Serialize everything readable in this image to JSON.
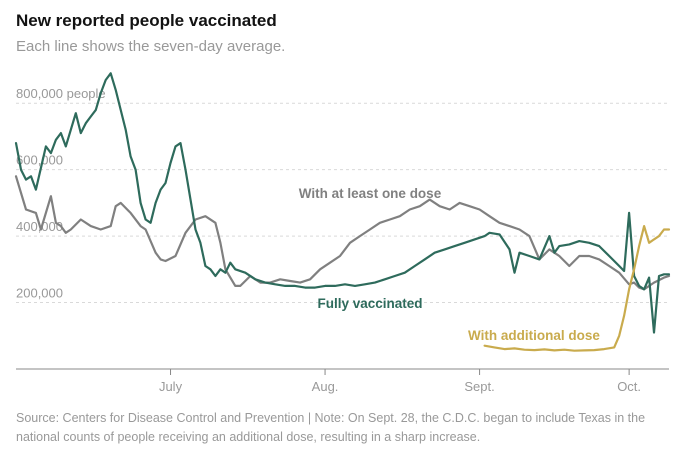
{
  "title": "New reported people vaccinated",
  "subtitle": "Each line shows the seven-day average.",
  "source": "Source: Centers for Disease Control and Prevention | Note: On Sept. 28, the C.D.C. began to include Texas in the national counts of people receiving an additional dose, resulting in a sharp increase.",
  "colors": {
    "at_least_one_dose": "#808080",
    "fully_vaccinated": "#2e6b5c",
    "additional_dose": "#c9ab4d",
    "gridline": "#d9d9d9",
    "axis_text": "#999999"
  },
  "chart_data": {
    "type": "line",
    "title": "New reported people vaccinated",
    "subtitle": "Each line shows the seven-day average.",
    "xlabel": "",
    "ylabel": "",
    "x_axis": {
      "start_day": 0,
      "end_day": 131,
      "note": "day 0 = June 4"
    },
    "xlim": [
      0,
      131
    ],
    "ylim": [
      0,
      900000
    ],
    "y_ticks": [
      {
        "value": 200000,
        "label": "200,000"
      },
      {
        "value": 400000,
        "label": "400,000"
      },
      {
        "value": 600000,
        "label": "600,000"
      },
      {
        "value": 800000,
        "label": "800,000 people"
      }
    ],
    "x_ticks": [
      {
        "day": 31,
        "label": "July"
      },
      {
        "day": 62,
        "label": "Aug."
      },
      {
        "day": 93,
        "label": "Sept."
      },
      {
        "day": 123,
        "label": "Oct."
      }
    ],
    "grid": true,
    "series": [
      {
        "name": "With at least one dose",
        "label_text": "With at least one dose",
        "color_key": "at_least_one_dose",
        "points": [
          [
            0,
            580000
          ],
          [
            2,
            480000
          ],
          [
            4,
            470000
          ],
          [
            5,
            420000
          ],
          [
            7,
            520000
          ],
          [
            8,
            440000
          ],
          [
            9,
            430000
          ],
          [
            10,
            410000
          ],
          [
            11,
            420000
          ],
          [
            13,
            450000
          ],
          [
            15,
            430000
          ],
          [
            17,
            420000
          ],
          [
            19,
            430000
          ],
          [
            20,
            490000
          ],
          [
            21,
            500000
          ],
          [
            23,
            470000
          ],
          [
            25,
            430000
          ],
          [
            26,
            420000
          ],
          [
            28,
            350000
          ],
          [
            29,
            330000
          ],
          [
            30,
            325000
          ],
          [
            32,
            340000
          ],
          [
            34,
            410000
          ],
          [
            36,
            450000
          ],
          [
            38,
            460000
          ],
          [
            40,
            440000
          ],
          [
            41,
            380000
          ],
          [
            42,
            300000
          ],
          [
            44,
            250000
          ],
          [
            45,
            250000
          ],
          [
            47,
            280000
          ],
          [
            49,
            260000
          ],
          [
            51,
            260000
          ],
          [
            53,
            270000
          ],
          [
            55,
            265000
          ],
          [
            57,
            260000
          ],
          [
            59,
            270000
          ],
          [
            61,
            300000
          ],
          [
            63,
            320000
          ],
          [
            65,
            340000
          ],
          [
            67,
            380000
          ],
          [
            69,
            400000
          ],
          [
            71,
            420000
          ],
          [
            73,
            440000
          ],
          [
            75,
            450000
          ],
          [
            77,
            460000
          ],
          [
            79,
            480000
          ],
          [
            81,
            490000
          ],
          [
            83,
            510000
          ],
          [
            85,
            490000
          ],
          [
            87,
            480000
          ],
          [
            89,
            500000
          ],
          [
            91,
            490000
          ],
          [
            93,
            480000
          ],
          [
            95,
            460000
          ],
          [
            97,
            440000
          ],
          [
            99,
            430000
          ],
          [
            101,
            420000
          ],
          [
            103,
            400000
          ],
          [
            105,
            330000
          ],
          [
            107,
            360000
          ],
          [
            109,
            340000
          ],
          [
            111,
            310000
          ],
          [
            113,
            340000
          ],
          [
            115,
            340000
          ],
          [
            117,
            330000
          ],
          [
            119,
            310000
          ],
          [
            121,
            290000
          ],
          [
            123,
            255000
          ],
          [
            124,
            260000
          ],
          [
            125,
            245000
          ],
          [
            126,
            240000
          ],
          [
            128,
            260000
          ],
          [
            130,
            275000
          ],
          [
            131,
            280000
          ]
        ]
      },
      {
        "name": "Fully vaccinated",
        "label_text": "Fully vaccinated",
        "color_key": "fully_vaccinated",
        "points": [
          [
            0,
            680000
          ],
          [
            1,
            600000
          ],
          [
            2,
            570000
          ],
          [
            3,
            580000
          ],
          [
            4,
            540000
          ],
          [
            6,
            670000
          ],
          [
            7,
            650000
          ],
          [
            8,
            690000
          ],
          [
            9,
            710000
          ],
          [
            10,
            670000
          ],
          [
            11,
            720000
          ],
          [
            12,
            770000
          ],
          [
            13,
            710000
          ],
          [
            14,
            740000
          ],
          [
            15,
            760000
          ],
          [
            16,
            780000
          ],
          [
            17,
            830000
          ],
          [
            18,
            870000
          ],
          [
            19,
            890000
          ],
          [
            20,
            840000
          ],
          [
            21,
            780000
          ],
          [
            22,
            720000
          ],
          [
            23,
            640000
          ],
          [
            24,
            600000
          ],
          [
            25,
            500000
          ],
          [
            26,
            450000
          ],
          [
            27,
            440000
          ],
          [
            28,
            500000
          ],
          [
            29,
            540000
          ],
          [
            30,
            560000
          ],
          [
            31,
            620000
          ],
          [
            32,
            670000
          ],
          [
            33,
            680000
          ],
          [
            34,
            600000
          ],
          [
            35,
            510000
          ],
          [
            36,
            420000
          ],
          [
            37,
            380000
          ],
          [
            38,
            310000
          ],
          [
            39,
            300000
          ],
          [
            40,
            280000
          ],
          [
            41,
            300000
          ],
          [
            42,
            290000
          ],
          [
            43,
            320000
          ],
          [
            44,
            300000
          ],
          [
            46,
            290000
          ],
          [
            48,
            270000
          ],
          [
            50,
            260000
          ],
          [
            52,
            255000
          ],
          [
            54,
            250000
          ],
          [
            56,
            250000
          ],
          [
            58,
            245000
          ],
          [
            60,
            245000
          ],
          [
            62,
            250000
          ],
          [
            64,
            250000
          ],
          [
            66,
            255000
          ],
          [
            68,
            250000
          ],
          [
            70,
            255000
          ],
          [
            72,
            260000
          ],
          [
            74,
            270000
          ],
          [
            76,
            280000
          ],
          [
            78,
            290000
          ],
          [
            80,
            310000
          ],
          [
            82,
            330000
          ],
          [
            84,
            350000
          ],
          [
            86,
            360000
          ],
          [
            88,
            370000
          ],
          [
            90,
            380000
          ],
          [
            92,
            390000
          ],
          [
            94,
            400000
          ],
          [
            95,
            410000
          ],
          [
            97,
            405000
          ],
          [
            99,
            360000
          ],
          [
            100,
            290000
          ],
          [
            101,
            350000
          ],
          [
            103,
            340000
          ],
          [
            105,
            330000
          ],
          [
            107,
            400000
          ],
          [
            108,
            350000
          ],
          [
            109,
            370000
          ],
          [
            111,
            375000
          ],
          [
            113,
            385000
          ],
          [
            115,
            380000
          ],
          [
            117,
            370000
          ],
          [
            119,
            340000
          ],
          [
            121,
            310000
          ],
          [
            122,
            295000
          ],
          [
            123,
            470000
          ],
          [
            124,
            280000
          ],
          [
            125,
            250000
          ],
          [
            126,
            240000
          ],
          [
            127,
            275000
          ],
          [
            128,
            110000
          ],
          [
            129,
            280000
          ],
          [
            130,
            285000
          ],
          [
            131,
            285000
          ]
        ]
      },
      {
        "name": "With additional dose",
        "label_text": "With additional dose",
        "color_key": "additional_dose",
        "points": [
          [
            94,
            70000
          ],
          [
            96,
            65000
          ],
          [
            98,
            60000
          ],
          [
            100,
            62000
          ],
          [
            102,
            58000
          ],
          [
            104,
            57000
          ],
          [
            106,
            59000
          ],
          [
            108,
            56000
          ],
          [
            110,
            58000
          ],
          [
            112,
            55000
          ],
          [
            114,
            56000
          ],
          [
            116,
            57000
          ],
          [
            118,
            60000
          ],
          [
            120,
            65000
          ],
          [
            121,
            100000
          ],
          [
            122,
            160000
          ],
          [
            123,
            240000
          ],
          [
            124,
            300000
          ],
          [
            125,
            370000
          ],
          [
            126,
            430000
          ],
          [
            127,
            380000
          ],
          [
            128,
            390000
          ],
          [
            129,
            400000
          ],
          [
            130,
            420000
          ],
          [
            131,
            420000
          ]
        ]
      }
    ]
  }
}
